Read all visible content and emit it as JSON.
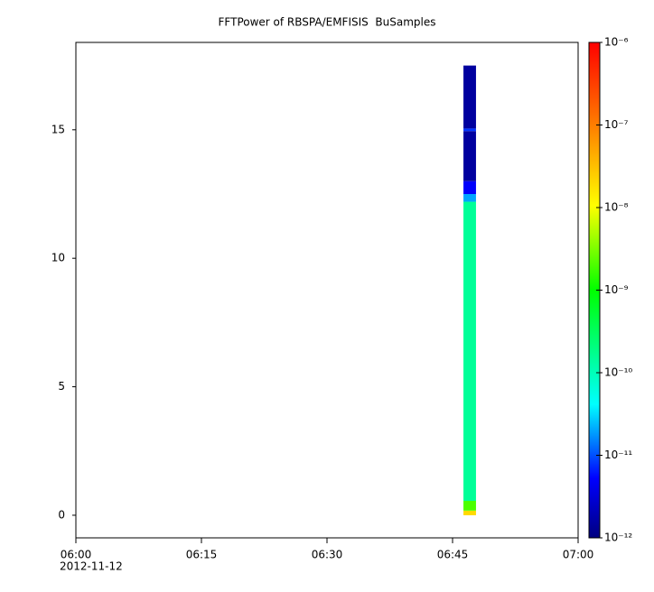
{
  "chart_data": {
    "type": "spectrogram",
    "title": "FFTPower of RBSPA/EMFISIS  BuSamples",
    "x_date_label": "2012-11-12",
    "xlim": [
      0,
      60
    ],
    "xticks": [
      {
        "value": 0,
        "label": "06:00"
      },
      {
        "value": 15,
        "label": "06:15"
      },
      {
        "value": 30,
        "label": "06:30"
      },
      {
        "value": 45,
        "label": "06:45"
      },
      {
        "value": 60,
        "label": "07:00"
      }
    ],
    "ylim": [
      -0.88,
      18.4
    ],
    "yticks": [
      0,
      5,
      10,
      15
    ],
    "x_range": [
      46.3,
      47.8
    ],
    "ybins": [
      0,
      0.18,
      0.56,
      12.2,
      12.5,
      13,
      14.95,
      15.05,
      17.5
    ],
    "values": [
      2e-08,
      2e-09,
      1.5e-10,
      2e-11,
      5e-12,
      1.5e-12,
      8e-12,
      1.5e-12
    ],
    "colorbar": {
      "log": true,
      "lim": [
        1e-12,
        1e-06
      ],
      "ticks": [
        {
          "value": 1e-12,
          "label": "10⁻¹²"
        },
        {
          "value": 1e-11,
          "label": "10⁻¹¹"
        },
        {
          "value": 1e-10,
          "label": "10⁻¹⁰"
        },
        {
          "value": 1e-09,
          "label": "10⁻⁹"
        },
        {
          "value": 1e-08,
          "label": "10⁻⁸"
        },
        {
          "value": 1e-07,
          "label": "10⁻⁷"
        },
        {
          "value": 1e-06,
          "label": "10⁻⁶"
        }
      ],
      "colors": [
        "#000080",
        "#0000ff",
        "#00ffff",
        "#00ff00",
        "#ffff00",
        "#ff8000",
        "#ff0000"
      ],
      "stops": [
        0,
        0.12,
        0.27,
        0.5,
        0.67,
        0.83,
        1
      ]
    }
  }
}
